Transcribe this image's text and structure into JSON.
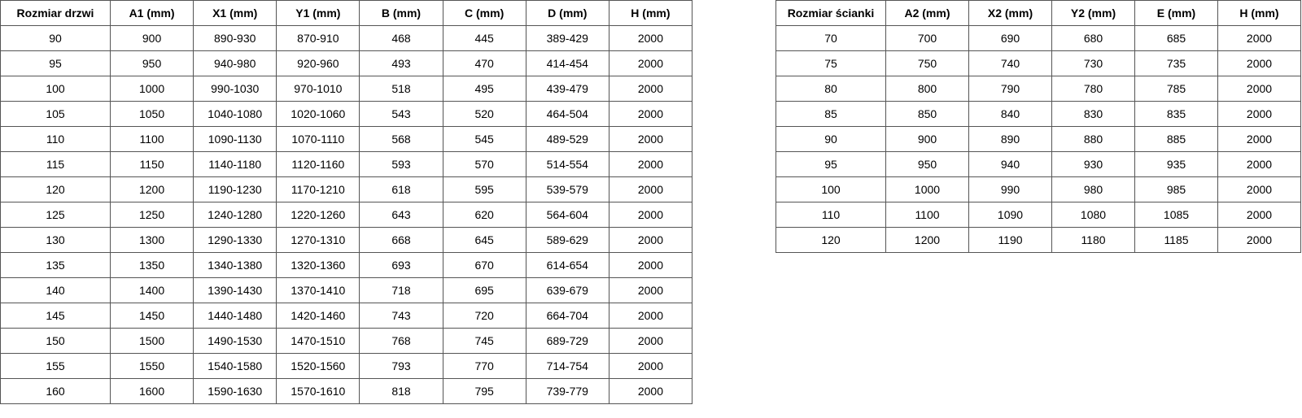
{
  "tables": [
    {
      "header": [
        "Rozmiar drzwi",
        "A1 (mm)",
        "X1 (mm)",
        "Y1 (mm)",
        "B (mm)",
        "C (mm)",
        "D (mm)",
        "H (mm)"
      ],
      "rows": [
        [
          90,
          900,
          "890-930",
          "870-910",
          468,
          445,
          "389-429",
          2000
        ],
        [
          95,
          950,
          "940-980",
          "920-960",
          493,
          470,
          "414-454",
          2000
        ],
        [
          100,
          1000,
          "990-1030",
          "970-1010",
          518,
          495,
          "439-479",
          2000
        ],
        [
          105,
          1050,
          "1040-1080",
          "1020-1060",
          543,
          520,
          "464-504",
          2000
        ],
        [
          110,
          1100,
          "1090-1130",
          "1070-1110",
          568,
          545,
          "489-529",
          2000
        ],
        [
          115,
          1150,
          "1140-1180",
          "1120-1160",
          593,
          570,
          "514-554",
          2000
        ],
        [
          120,
          1200,
          "1190-1230",
          "1170-1210",
          618,
          595,
          "539-579",
          2000
        ],
        [
          125,
          1250,
          "1240-1280",
          "1220-1260",
          643,
          620,
          "564-604",
          2000
        ],
        [
          130,
          1300,
          "1290-1330",
          "1270-1310",
          668,
          645,
          "589-629",
          2000
        ],
        [
          135,
          1350,
          "1340-1380",
          "1320-1360",
          693,
          670,
          "614-654",
          2000
        ],
        [
          140,
          1400,
          "1390-1430",
          "1370-1410",
          718,
          695,
          "639-679",
          2000
        ],
        [
          145,
          1450,
          "1440-1480",
          "1420-1460",
          743,
          720,
          "664-704",
          2000
        ],
        [
          150,
          1500,
          "1490-1530",
          "1470-1510",
          768,
          745,
          "689-729",
          2000
        ],
        [
          155,
          1550,
          "1540-1580",
          "1520-1560",
          793,
          770,
          "714-754",
          2000
        ],
        [
          160,
          1600,
          "1590-1630",
          "1570-1610",
          818,
          795,
          "739-779",
          2000
        ]
      ]
    },
    {
      "header": [
        "Rozmiar ścianki",
        "A2 (mm)",
        "X2 (mm)",
        "Y2 (mm)",
        "E (mm)",
        "H (mm)"
      ],
      "rows": [
        [
          70,
          700,
          690,
          680,
          685,
          2000
        ],
        [
          75,
          750,
          740,
          730,
          735,
          2000
        ],
        [
          80,
          800,
          790,
          780,
          785,
          2000
        ],
        [
          85,
          850,
          840,
          830,
          835,
          2000
        ],
        [
          90,
          900,
          890,
          880,
          885,
          2000
        ],
        [
          95,
          950,
          940,
          930,
          935,
          2000
        ],
        [
          100,
          1000,
          990,
          980,
          985,
          2000
        ],
        [
          110,
          1100,
          1090,
          1080,
          1085,
          2000
        ],
        [
          120,
          1200,
          1190,
          1180,
          1185,
          2000
        ]
      ]
    }
  ]
}
